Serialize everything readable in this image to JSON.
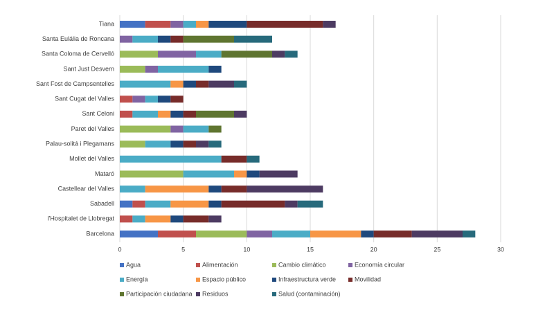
{
  "chart_data": {
    "type": "stacked-bar-horizontal",
    "categories": [
      "Tiana",
      "Santa Eulália de Roncana",
      "Santa Coloma de Cervelló",
      "Sant Just Desvern",
      "Sant Fost de Campsentelles",
      "Sant Cugat del Valles",
      "Sant Celoni",
      "Paret del Valles",
      "Palau-solitá i Plegamans",
      "Mollet del Valles",
      "Mataró",
      "Castellear del Valles",
      "Sabadell",
      "l'Hospitalet de Llobregat",
      "Barcelona"
    ],
    "series": [
      {
        "name": "Agua",
        "color": "#4472c4",
        "values": [
          2,
          0,
          0,
          0,
          0,
          0,
          0,
          0,
          0,
          0,
          0,
          0,
          1,
          0,
          3
        ]
      },
      {
        "name": "Alimentación",
        "color": "#c0504d",
        "values": [
          2,
          0,
          0,
          0,
          0,
          1,
          1,
          0,
          0,
          0,
          0,
          0,
          1,
          1,
          3
        ]
      },
      {
        "name": "Cambio climático",
        "color": "#9bbb59",
        "values": [
          0,
          0,
          3,
          2,
          0,
          0,
          0,
          4,
          2,
          0,
          5,
          0,
          0,
          0,
          4
        ]
      },
      {
        "name": "Economía circular",
        "color": "#8064a2",
        "values": [
          1,
          1,
          3,
          1,
          0,
          1,
          0,
          1,
          0,
          0,
          0,
          0,
          0,
          0,
          2
        ]
      },
      {
        "name": "Energía",
        "color": "#4bacc6",
        "values": [
          1,
          2,
          2,
          4,
          4,
          1,
          2,
          2,
          2,
          8,
          4,
          2,
          2,
          1,
          3
        ]
      },
      {
        "name": "Espacio público",
        "color": "#f79646",
        "values": [
          1,
          0,
          0,
          0,
          1,
          0,
          1,
          0,
          0,
          0,
          1,
          5,
          3,
          2,
          4
        ]
      },
      {
        "name": "Infraestructura verde",
        "color": "#1f497d",
        "values": [
          3,
          1,
          0,
          1,
          1,
          1,
          1,
          0,
          1,
          0,
          1,
          1,
          1,
          1,
          1
        ]
      },
      {
        "name": "Movilidad",
        "color": "#772c2a",
        "values": [
          6,
          1,
          0,
          0,
          1,
          1,
          1,
          0,
          1,
          2,
          0,
          2,
          5,
          2,
          3
        ]
      },
      {
        "name": "Participación ciudadana",
        "color": "#5f7530",
        "values": [
          0,
          4,
          4,
          0,
          0,
          0,
          3,
          1,
          0,
          0,
          0,
          0,
          0,
          0,
          0
        ]
      },
      {
        "name": "Residuos",
        "color": "#4d3b62",
        "values": [
          1,
          0,
          1,
          0,
          2,
          0,
          1,
          0,
          1,
          0,
          3,
          6,
          1,
          1,
          4
        ]
      },
      {
        "name": "Salud (contaminación)",
        "color": "#276a7c",
        "values": [
          0,
          3,
          1,
          0,
          1,
          0,
          0,
          0,
          1,
          1,
          0,
          0,
          2,
          0,
          1
        ]
      }
    ],
    "xlim": [
      0,
      30
    ],
    "xticks": [
      0,
      5,
      10,
      15,
      20,
      25,
      30
    ],
    "grid": true
  }
}
